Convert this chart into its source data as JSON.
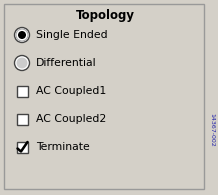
{
  "title": "Topology",
  "bg_color": "#d4d0c8",
  "border_color": "#999999",
  "items": [
    {
      "type": "radio",
      "checked": true,
      "label": "Single Ended"
    },
    {
      "type": "radio",
      "checked": false,
      "label": "Differential"
    },
    {
      "type": "check",
      "checked": false,
      "label": "AC Coupled1"
    },
    {
      "type": "check",
      "checked": false,
      "label": "AC Coupled2"
    },
    {
      "type": "check",
      "checked": true,
      "label": "Terminate"
    }
  ],
  "side_label": "14367-002",
  "title_fontsize": 8.5,
  "item_fontsize": 7.8,
  "side_fontsize": 4.5
}
